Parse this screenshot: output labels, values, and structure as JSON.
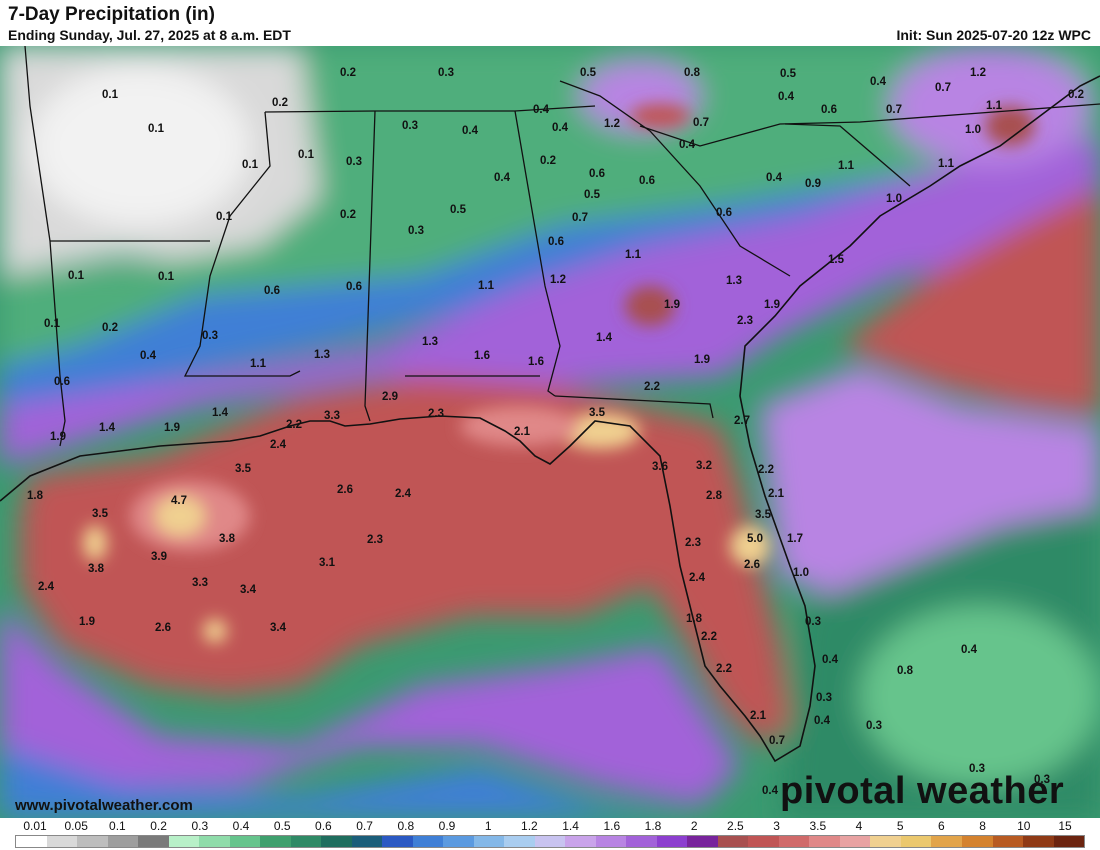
{
  "header": {
    "title": "7-Day Precipitation (in)",
    "subtitle": "Ending Sunday, Jul. 27, 2025 at 8 a.m. EDT",
    "init": "Init: Sun 2025-07-20 12z WPC"
  },
  "footer": {
    "website": "www.pivotalweather.com",
    "brand": "pivotal weather"
  },
  "legend": {
    "labels": [
      "0.01",
      "0.05",
      "0.1",
      "0.2",
      "0.3",
      "0.4",
      "0.5",
      "0.6",
      "0.7",
      "0.8",
      "0.9",
      "1",
      "1.2",
      "1.4",
      "1.6",
      "1.8",
      "2",
      "2.5",
      "3",
      "3.5",
      "4",
      "5",
      "6",
      "8",
      "10",
      "15"
    ],
    "colors": [
      "#ffffff",
      "#d9d9d9",
      "#bdbdbd",
      "#9e9e9e",
      "#7a7a7a",
      "#b8f0c8",
      "#8fdcaa",
      "#66c48c",
      "#3fa06e",
      "#2f8a66",
      "#1f6e5e",
      "#1b5e7a",
      "#2b59c3",
      "#3f7fd6",
      "#5b9ae0",
      "#84b8e8",
      "#a9cdf0",
      "#c8c3f0",
      "#c9a3ea",
      "#b884e3",
      "#a262d9",
      "#8c3fcf",
      "#78249c",
      "#a85050",
      "#c05555",
      "#d06a6a",
      "#e08888",
      "#e8a2a2",
      "#f0d090",
      "#ebc86e",
      "#e2a44a",
      "#d4822e",
      "#b85b22",
      "#8f3a16",
      "#6b2410"
    ]
  },
  "precip_labels": [
    {
      "v": "0.2"
    },
    {
      "v": "0.3"
    },
    {
      "v": "0.5"
    },
    {
      "v": "0.8"
    },
    {
      "v": "0.5"
    },
    {
      "v": "0.4"
    },
    {
      "v": "1.2"
    },
    {
      "v": "0.2"
    },
    {
      "v": "0.1"
    },
    {
      "v": "0.2"
    },
    {
      "v": "0.4"
    },
    {
      "v": "0.4"
    },
    {
      "v": "0.4"
    },
    {
      "v": "1.2"
    },
    {
      "v": "0.7"
    },
    {
      "v": "0.6"
    },
    {
      "v": "0.7"
    },
    {
      "v": "0.7"
    },
    {
      "v": "1.1"
    },
    {
      "v": "0.1"
    },
    {
      "v": "0.3"
    },
    {
      "v": "0.4"
    },
    {
      "v": "0.4"
    },
    {
      "v": "1.0"
    },
    {
      "v": "0.1"
    },
    {
      "v": "0.1"
    },
    {
      "v": "0.3"
    },
    {
      "v": "0.2"
    },
    {
      "v": "1.1"
    },
    {
      "v": "1.1"
    },
    {
      "v": "0.4"
    },
    {
      "v": "0.6"
    },
    {
      "v": "0.6"
    },
    {
      "v": "0.4"
    },
    {
      "v": "0.9"
    },
    {
      "v": "0.5"
    },
    {
      "v": "1.0"
    },
    {
      "v": "0.1"
    },
    {
      "v": "0.2"
    },
    {
      "v": "0.5"
    },
    {
      "v": "0.7"
    },
    {
      "v": "0.6"
    },
    {
      "v": "0.3"
    },
    {
      "v": "0.6"
    },
    {
      "v": "0.1"
    },
    {
      "v": "0.1"
    },
    {
      "v": "0.6"
    },
    {
      "v": "0.6"
    },
    {
      "v": "1.1"
    },
    {
      "v": "1.2"
    },
    {
      "v": "1.1"
    },
    {
      "v": "1.3"
    },
    {
      "v": "1.5"
    },
    {
      "v": "0.1"
    },
    {
      "v": "0.2"
    },
    {
      "v": "0.3"
    },
    {
      "v": "1.3"
    },
    {
      "v": "1.9"
    },
    {
      "v": "1.9"
    },
    {
      "v": "2.3"
    },
    {
      "v": "0.4"
    },
    {
      "v": "1.1"
    },
    {
      "v": "1.3"
    },
    {
      "v": "1.6"
    },
    {
      "v": "1.6"
    },
    {
      "v": "1.4"
    },
    {
      "v": "1.9"
    },
    {
      "v": "0.6"
    },
    {
      "v": "2.2"
    },
    {
      "v": "1.4"
    },
    {
      "v": "2.2"
    },
    {
      "v": "3.3"
    },
    {
      "v": "2.9"
    },
    {
      "v": "2.3"
    },
    {
      "v": "3.5"
    },
    {
      "v": "2.7"
    },
    {
      "v": "1.9"
    },
    {
      "v": "1.4"
    },
    {
      "v": "1.9"
    },
    {
      "v": "2.4"
    },
    {
      "v": "2.1"
    },
    {
      "v": "3.5"
    },
    {
      "v": "3.6"
    },
    {
      "v": "3.2"
    },
    {
      "v": "2.2"
    },
    {
      "v": "1.8"
    },
    {
      "v": "4.7"
    },
    {
      "v": "2.6"
    },
    {
      "v": "2.4"
    },
    {
      "v": "2.8"
    },
    {
      "v": "2.1"
    },
    {
      "v": "3.5"
    },
    {
      "v": "3.8"
    },
    {
      "v": "3.5"
    },
    {
      "v": "3.9"
    },
    {
      "v": "2.3"
    },
    {
      "v": "2.3"
    },
    {
      "v": "5.0"
    },
    {
      "v": "1.7"
    },
    {
      "v": "3.8"
    },
    {
      "v": "3.1"
    },
    {
      "v": "2.6"
    },
    {
      "v": "1.0"
    },
    {
      "v": "2.4"
    },
    {
      "v": "3.3"
    },
    {
      "v": "3.4"
    },
    {
      "v": "2.4"
    },
    {
      "v": "1.9"
    },
    {
      "v": "2.6"
    },
    {
      "v": "3.4"
    },
    {
      "v": "1.8"
    },
    {
      "v": "0.3"
    },
    {
      "v": "2.2"
    },
    {
      "v": "0.4"
    },
    {
      "v": "0.4"
    },
    {
      "v": "2.2"
    },
    {
      "v": "0.8"
    },
    {
      "v": "0.3"
    },
    {
      "v": "2.1"
    },
    {
      "v": "0.4"
    },
    {
      "v": "0.3"
    },
    {
      "v": "0.7"
    },
    {
      "v": "0.3"
    },
    {
      "v": "0.3"
    },
    {
      "v": "0.4"
    }
  ]
}
